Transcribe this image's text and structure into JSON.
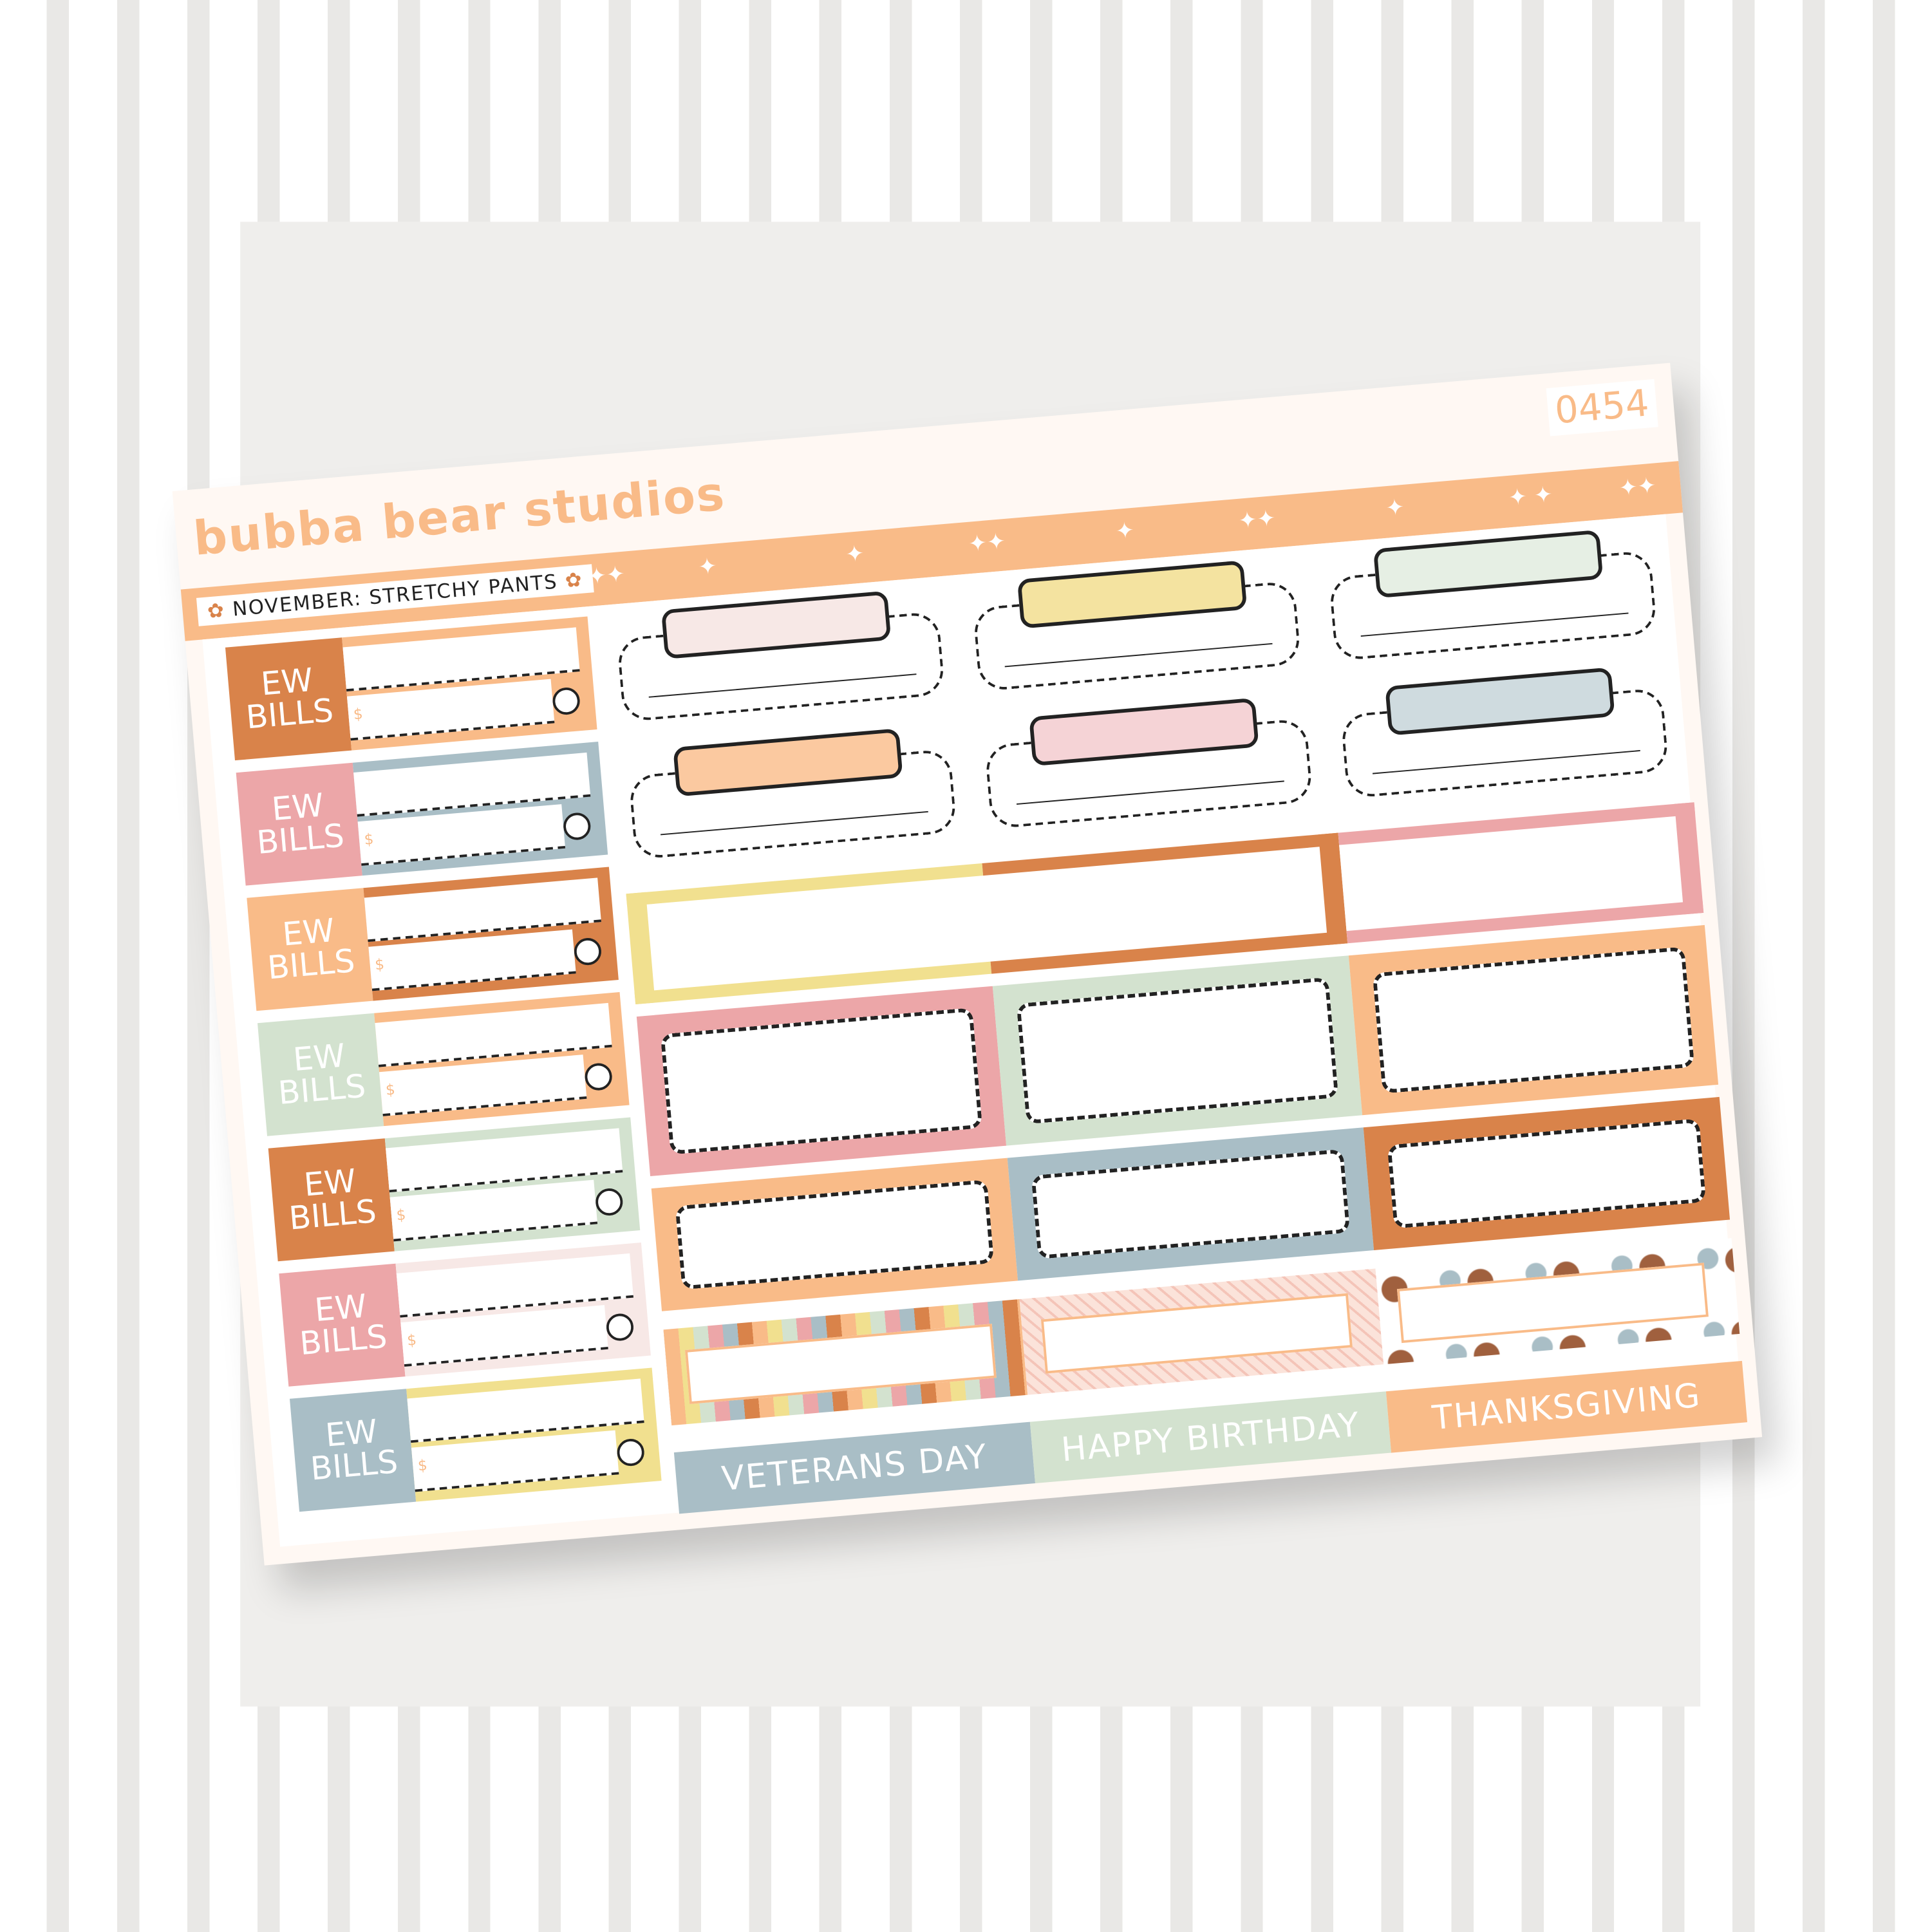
{
  "brand": "bubba bear studios",
  "code": "0454",
  "month_label": "November: Stretchy Pants",
  "colors": {
    "dark_orange": "#d9834a",
    "peach": "#f9bb88",
    "pink": "#eca6a8",
    "blue": "#a9bec6",
    "green": "#d3e2cf",
    "yellow": "#f1e08f",
    "light_pink": "#f7e8e6"
  },
  "bills": [
    {
      "line1": "EW",
      "line2": "BILLS",
      "currency": "$",
      "label_color": "#d9834a",
      "frame_color": "#f9bb88"
    },
    {
      "line1": "EW",
      "line2": "BILLS",
      "currency": "$",
      "label_color": "#eca6a8",
      "frame_color": "#a9bec6"
    },
    {
      "line1": "EW",
      "line2": "BILLS",
      "currency": "$",
      "label_color": "#f9bb88",
      "frame_color": "#d9834a"
    },
    {
      "line1": "EW",
      "line2": "BILLS",
      "currency": "$",
      "label_color": "#d3e2cf",
      "frame_color": "#f9bb88"
    },
    {
      "line1": "EW",
      "line2": "BILLS",
      "currency": "$",
      "label_color": "#d9834a",
      "frame_color": "#d3e2cf"
    },
    {
      "line1": "EW",
      "line2": "BILLS",
      "currency": "$",
      "label_color": "#eca6a8",
      "frame_color": "#f7e8e6"
    },
    {
      "line1": "EW",
      "line2": "BILLS",
      "currency": "$",
      "label_color": "#a9bec6",
      "frame_color": "#f1e08f"
    }
  ],
  "tabs": [
    [
      "#f7e8e6",
      "#f4e3a0",
      "#e6efe4"
    ],
    [
      "#fbc9a0",
      "#f5d3d6",
      "#cfdbdf"
    ]
  ],
  "banners": [
    "#f1e08f",
    "#d9834a",
    "#eca6a8"
  ],
  "boxes": [
    [
      "#eca6a8",
      "#d3e2cf",
      "#f9bb88"
    ],
    [
      "#f9bb88",
      "#a9bec6",
      "#d9834a"
    ]
  ],
  "patterns": [
    "scallop",
    "stripes",
    "thanksgiving-food"
  ],
  "labels": [
    {
      "text": "Veterans Day",
      "color": "#a9bec6"
    },
    {
      "text": "Happy Birthday",
      "color": "#d3e2cf"
    },
    {
      "text": "Thanksgiving",
      "color": "#f9bb88"
    }
  ]
}
